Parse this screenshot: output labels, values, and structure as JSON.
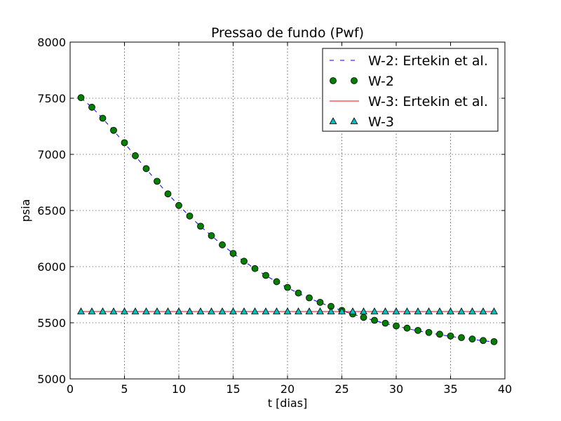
{
  "chart_data": {
    "type": "line",
    "title": "Pressao de fundo (Pwf)",
    "xlabel": "t [dias]",
    "ylabel": "psia",
    "xlim": [
      0,
      40
    ],
    "ylim": [
      5000,
      8000
    ],
    "xticks": [
      0,
      5,
      10,
      15,
      20,
      25,
      30,
      35,
      40
    ],
    "yticks": [
      5000,
      5500,
      6000,
      6500,
      7000,
      7500,
      8000
    ],
    "grid": true,
    "legend_position": "top-right",
    "series": [
      {
        "name": "W-2: Ertekin et al.",
        "style": "dashed-line",
        "color": "#0000ff",
        "x": [
          1,
          2,
          3,
          4,
          5,
          6,
          7,
          8,
          9,
          10,
          11,
          12,
          13,
          14,
          15,
          16,
          17,
          18,
          19,
          20,
          21,
          22,
          23,
          24,
          25,
          26,
          27,
          28,
          29,
          30,
          31,
          32,
          33,
          34,
          35,
          36,
          37,
          38,
          39
        ],
        "y": [
          7502,
          7420,
          7319,
          7211,
          7100,
          6985,
          6870,
          6757,
          6647,
          6545,
          6449,
          6359,
          6275,
          6194,
          6118,
          6047,
          5982,
          5921,
          5865,
          5812,
          5763,
          5718,
          5679,
          5643,
          5608,
          5577,
          5547,
          5520,
          5494,
          5470,
          5449,
          5428,
          5411,
          5394,
          5379,
          5365,
          5352,
          5340,
          5330
        ]
      },
      {
        "name": "W-2",
        "style": "circle-markers",
        "color": "#007f00",
        "x": [
          1,
          2,
          3,
          4,
          5,
          6,
          7,
          8,
          9,
          10,
          11,
          12,
          13,
          14,
          15,
          16,
          17,
          18,
          19,
          20,
          21,
          22,
          23,
          24,
          25,
          26,
          27,
          28,
          29,
          30,
          31,
          32,
          33,
          34,
          35,
          36,
          37,
          38,
          39
        ],
        "y": [
          7505,
          7420,
          7322,
          7214,
          7104,
          6988,
          6873,
          6760,
          6648,
          6545,
          6451,
          6360,
          6276,
          6194,
          6118,
          6048,
          5983,
          5922,
          5866,
          5815,
          5765,
          5722,
          5682,
          5646,
          5610,
          5578,
          5548,
          5522,
          5496,
          5472,
          5452,
          5432,
          5414,
          5398,
          5382,
          5368,
          5355,
          5342,
          5332
        ]
      },
      {
        "name": "W-3: Ertekin et al.",
        "style": "solid-line",
        "color": "#ff0000",
        "x": [
          1,
          39
        ],
        "y": [
          5600,
          5600
        ]
      },
      {
        "name": "W-3",
        "style": "triangle-markers",
        "color": "#00bfbf",
        "x": [
          1,
          2,
          3,
          4,
          5,
          6,
          7,
          8,
          9,
          10,
          11,
          12,
          13,
          14,
          15,
          16,
          17,
          18,
          19,
          20,
          21,
          22,
          23,
          24,
          25,
          26,
          27,
          28,
          29,
          30,
          31,
          32,
          33,
          34,
          35,
          36,
          37,
          38,
          39
        ],
        "y": [
          5600,
          5600,
          5600,
          5600,
          5600,
          5600,
          5600,
          5600,
          5600,
          5600,
          5600,
          5600,
          5600,
          5600,
          5600,
          5600,
          5600,
          5600,
          5600,
          5600,
          5600,
          5600,
          5600,
          5600,
          5600,
          5600,
          5600,
          5600,
          5600,
          5600,
          5600,
          5600,
          5600,
          5600,
          5600,
          5600,
          5600,
          5600,
          5600
        ]
      }
    ]
  }
}
